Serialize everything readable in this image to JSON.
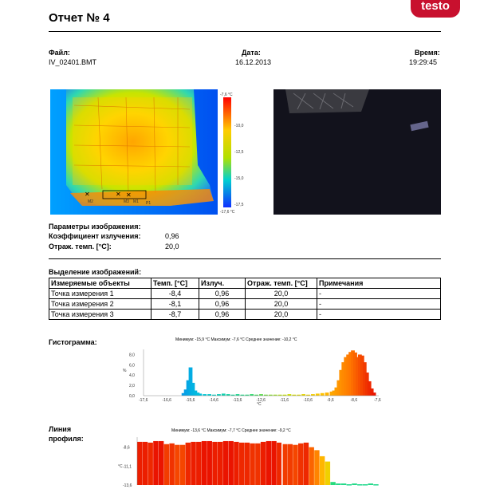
{
  "header": {
    "logo": "testo",
    "title": "Отчет № 4"
  },
  "info": {
    "file_label": "Файл:",
    "file_value": "IV_02401.BMT",
    "date_label": "Дата:",
    "date_value": "16.12.2013",
    "time_label": "Время:",
    "time_value": "19:29:45"
  },
  "thermal": {
    "scale_top": "-7,6 °C",
    "scale_labels": [
      "-10,0",
      "-12,5",
      "-15,0",
      "-17,5"
    ],
    "scale_bottom": "-17,6 °C",
    "markers": [
      "M2",
      "M3",
      "M1",
      "P1"
    ]
  },
  "params": {
    "heading": "Параметры изображения:",
    "emissivity_label": "Коэффициент излучения:",
    "emissivity_value": "0,96",
    "refl_label": "Отраж. темп. [°C]:",
    "refl_value": "20,0"
  },
  "selection": {
    "heading": "Выделение изображений:",
    "columns": [
      "Измеряемые объекты",
      "Темп. [°C]",
      "Излуч.",
      "Отраж. темп. [°C]",
      "Примечания"
    ],
    "rows": [
      [
        "Точка измерения 1",
        "-8,4",
        "0,96",
        "20,0",
        "-"
      ],
      [
        "Точка измерения 2",
        "-8,1",
        "0,96",
        "20,0",
        "-"
      ],
      [
        "Точка измерения 3",
        "-8,7",
        "0,96",
        "20,0",
        "-"
      ]
    ]
  },
  "histogram": {
    "label": "Гистограмма:",
    "stats": "Минимум: -15,9 °C Максимум: -7,6 °C Среднее значение: -10,2 °C",
    "ylabel": "%",
    "xlabel": "°C",
    "yticks": [
      "8,0",
      "6,0",
      "4,0",
      "2,0",
      "0,0"
    ],
    "xticks": [
      "-17,6",
      "-16,6",
      "-15,6",
      "-14,6",
      "-13,6",
      "-12,6",
      "-11,6",
      "-10,6",
      "-9,6",
      "-8,6",
      "-7,6"
    ]
  },
  "profile": {
    "label": "Линия профиля:",
    "stats": "Минимум: -13,6 °C Максимум: -7,7 °C Среднее значение: -9,2 °C",
    "ylabel": "°C",
    "yticks": [
      "-8,6",
      "-11,1",
      "-13,6"
    ]
  },
  "chart_data": [
    {
      "type": "bar",
      "title": "Минимум: -15,9 °C Максимум: -7,6 °C Среднее значение: -10,2 °C",
      "xlabel": "°C",
      "ylabel": "%",
      "xlim": [
        -17.6,
        -7.6
      ],
      "ylim": [
        0,
        9
      ],
      "x": [
        -15.9,
        -15.8,
        -15.7,
        -15.6,
        -15.5,
        -15.4,
        -15.3,
        -15.2,
        -15.0,
        -14.8,
        -14.6,
        -14.4,
        -14.2,
        -14.0,
        -13.8,
        -13.6,
        -13.4,
        -13.2,
        -13.0,
        -12.8,
        -12.6,
        -12.4,
        -12.2,
        -12.0,
        -11.8,
        -11.6,
        -11.4,
        -11.2,
        -11.0,
        -10.8,
        -10.6,
        -10.4,
        -10.2,
        -10.0,
        -9.8,
        -9.6,
        -9.5,
        -9.4,
        -9.3,
        -9.2,
        -9.1,
        -9.0,
        -8.9,
        -8.8,
        -8.7,
        -8.6,
        -8.5,
        -8.4,
        -8.3,
        -8.2,
        -8.1,
        -8.0,
        -7.9,
        -7.8
      ],
      "values": [
        0.5,
        1.2,
        3.0,
        5.5,
        2.5,
        1.0,
        0.6,
        0.4,
        0.3,
        0.3,
        0.2,
        0.3,
        0.4,
        0.3,
        0.2,
        0.3,
        0.2,
        0.2,
        0.3,
        0.2,
        0.3,
        0.2,
        0.2,
        0.2,
        0.2,
        0.2,
        0.3,
        0.2,
        0.2,
        0.3,
        0.2,
        0.3,
        0.4,
        0.5,
        0.6,
        0.8,
        1.0,
        1.6,
        3.0,
        5.0,
        6.5,
        7.5,
        8.0,
        8.5,
        8.8,
        8.4,
        7.5,
        8.0,
        7.8,
        6.5,
        4.5,
        2.8,
        1.4,
        0.6
      ]
    },
    {
      "type": "bar",
      "title": "Минимум: -13,6 °C Максимум: -7,7 °C Среднее значение: -9,2 °C",
      "ylabel": "°C",
      "ylim": [
        -13.6,
        -7.7
      ],
      "values": [
        -7.9,
        -7.9,
        -8.0,
        -7.8,
        -7.8,
        -8.2,
        -8.1,
        -8.3,
        -8.3,
        -8.0,
        -7.9,
        -7.9,
        -7.8,
        -7.8,
        -7.9,
        -7.9,
        -7.8,
        -7.8,
        -7.9,
        -8.0,
        -8.0,
        -8.1,
        -8.1,
        -7.9,
        -7.8,
        -7.8,
        -8.0,
        -8.2,
        -8.2,
        -8.3,
        -8.1,
        -8.0,
        -8.6,
        -9.0,
        -9.8,
        -10.5,
        -13.2,
        -13.4,
        -13.4,
        -13.5,
        -13.4,
        -13.5,
        -13.5,
        -13.4,
        -13.5
      ]
    }
  ]
}
